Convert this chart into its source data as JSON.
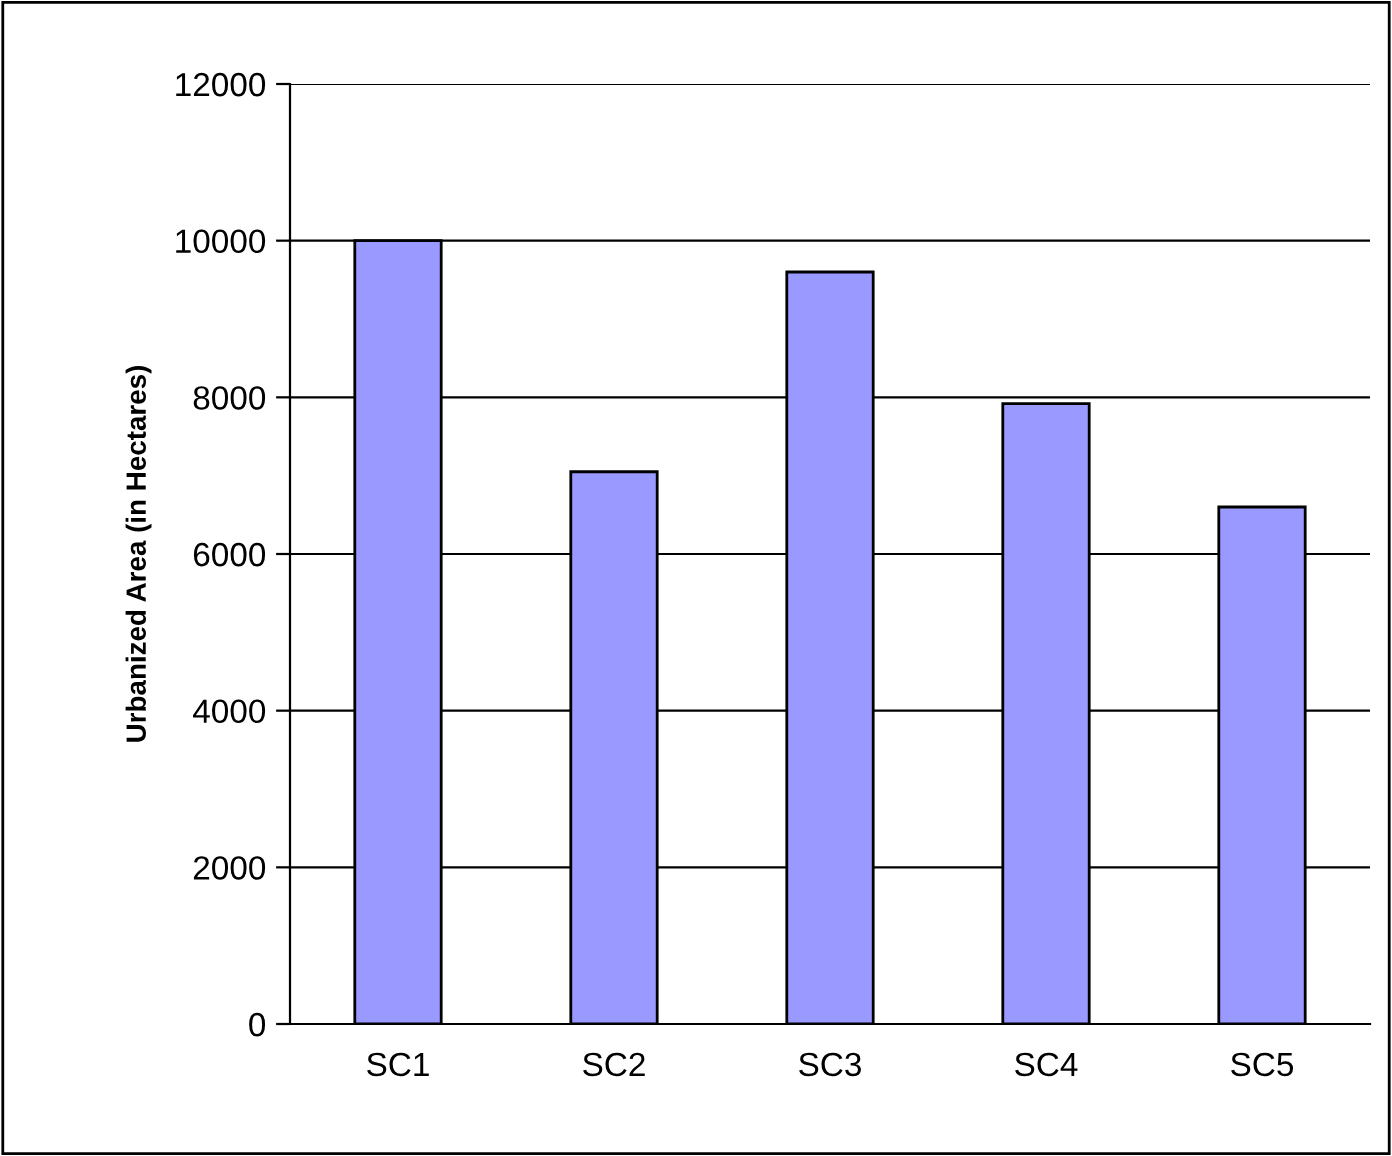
{
  "chart_data": {
    "type": "bar",
    "ylabel": "Urbanized Area (in Hectares)",
    "categories": [
      "SC1",
      "SC2",
      "SC3",
      "SC4",
      "SC5"
    ],
    "values": [
      10000,
      7050,
      9600,
      7920,
      6600
    ],
    "color": "#9999ff",
    "ylim": [
      0,
      12000
    ],
    "yticks": [
      0,
      2000,
      4000,
      6000,
      8000,
      10000,
      12000
    ],
    "grid": "y"
  }
}
